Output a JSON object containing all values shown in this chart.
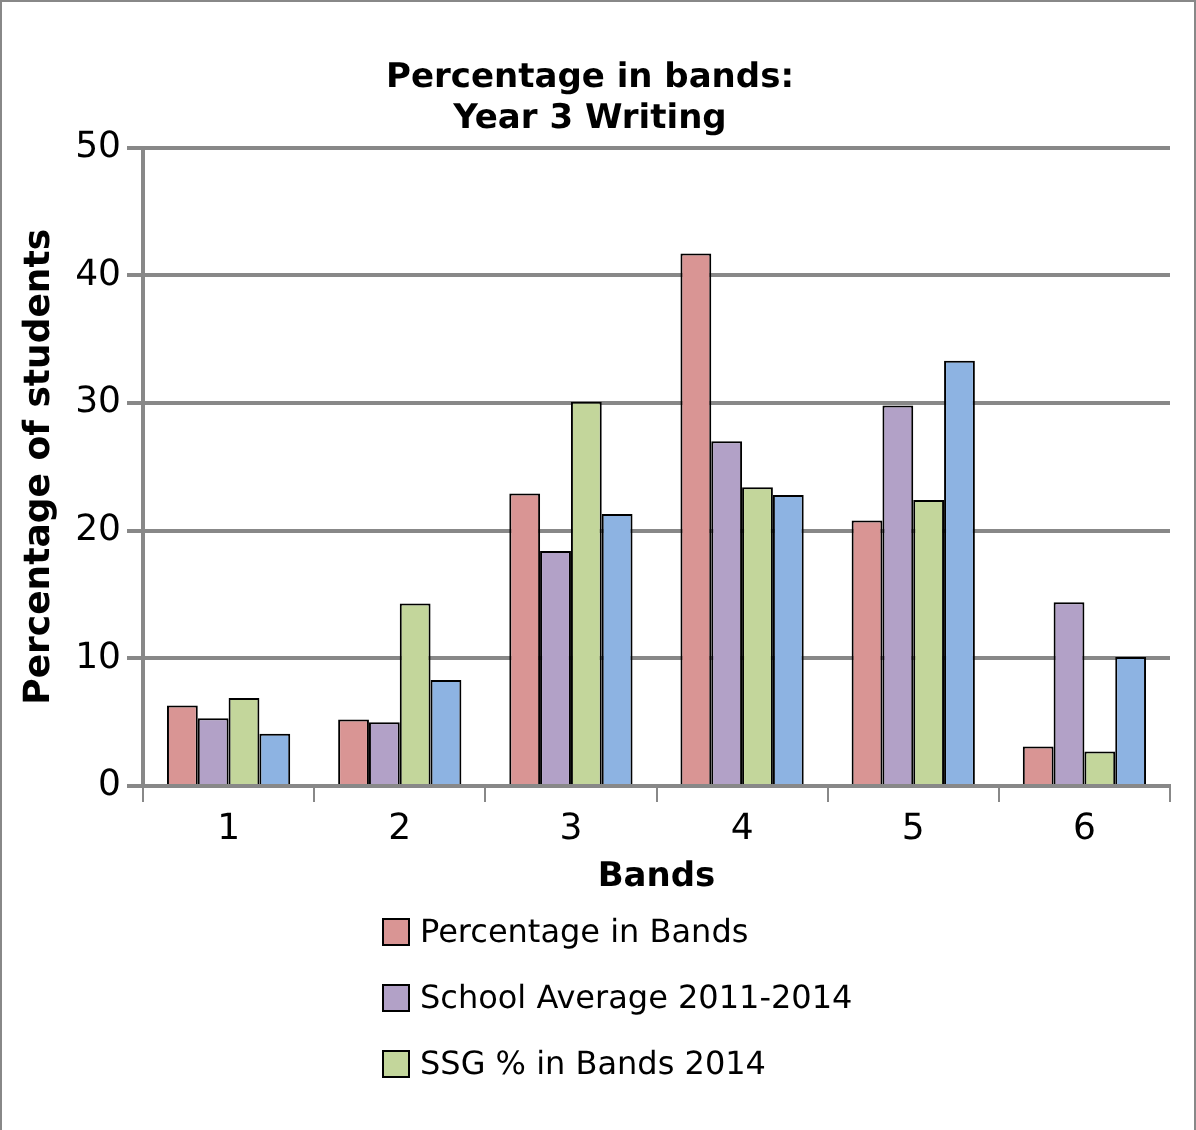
{
  "chart_data": {
    "type": "bar",
    "title": [
      "Percentage in bands:",
      "Year 3 Writing"
    ],
    "xlabel": "Bands",
    "ylabel": "Percentage of students",
    "categories": [
      "1",
      "2",
      "3",
      "4",
      "5",
      "6"
    ],
    "series": [
      {
        "name": "Percentage in Bands",
        "color": "#d99594",
        "values": [
          6.3,
          5.2,
          22.9,
          41.7,
          20.8,
          3.1
        ]
      },
      {
        "name": "School Average 2011-2014",
        "color": "#b2a1c7",
        "values": [
          5.3,
          5.0,
          18.4,
          27.0,
          29.8,
          14.4
        ]
      },
      {
        "name": "SSG % in Bands 2014",
        "color": "#c3d69b",
        "values": [
          6.9,
          14.3,
          30.1,
          23.4,
          22.4,
          2.7
        ]
      },
      {
        "color": "#8db3e2",
        "values": [
          4.1,
          8.3,
          21.3,
          22.8,
          33.3,
          10.1
        ]
      }
    ],
    "ylim": [
      0,
      50
    ],
    "yticks": [
      0,
      10,
      20,
      30,
      40,
      50
    ],
    "grid": "y",
    "legend": "bottom"
  }
}
